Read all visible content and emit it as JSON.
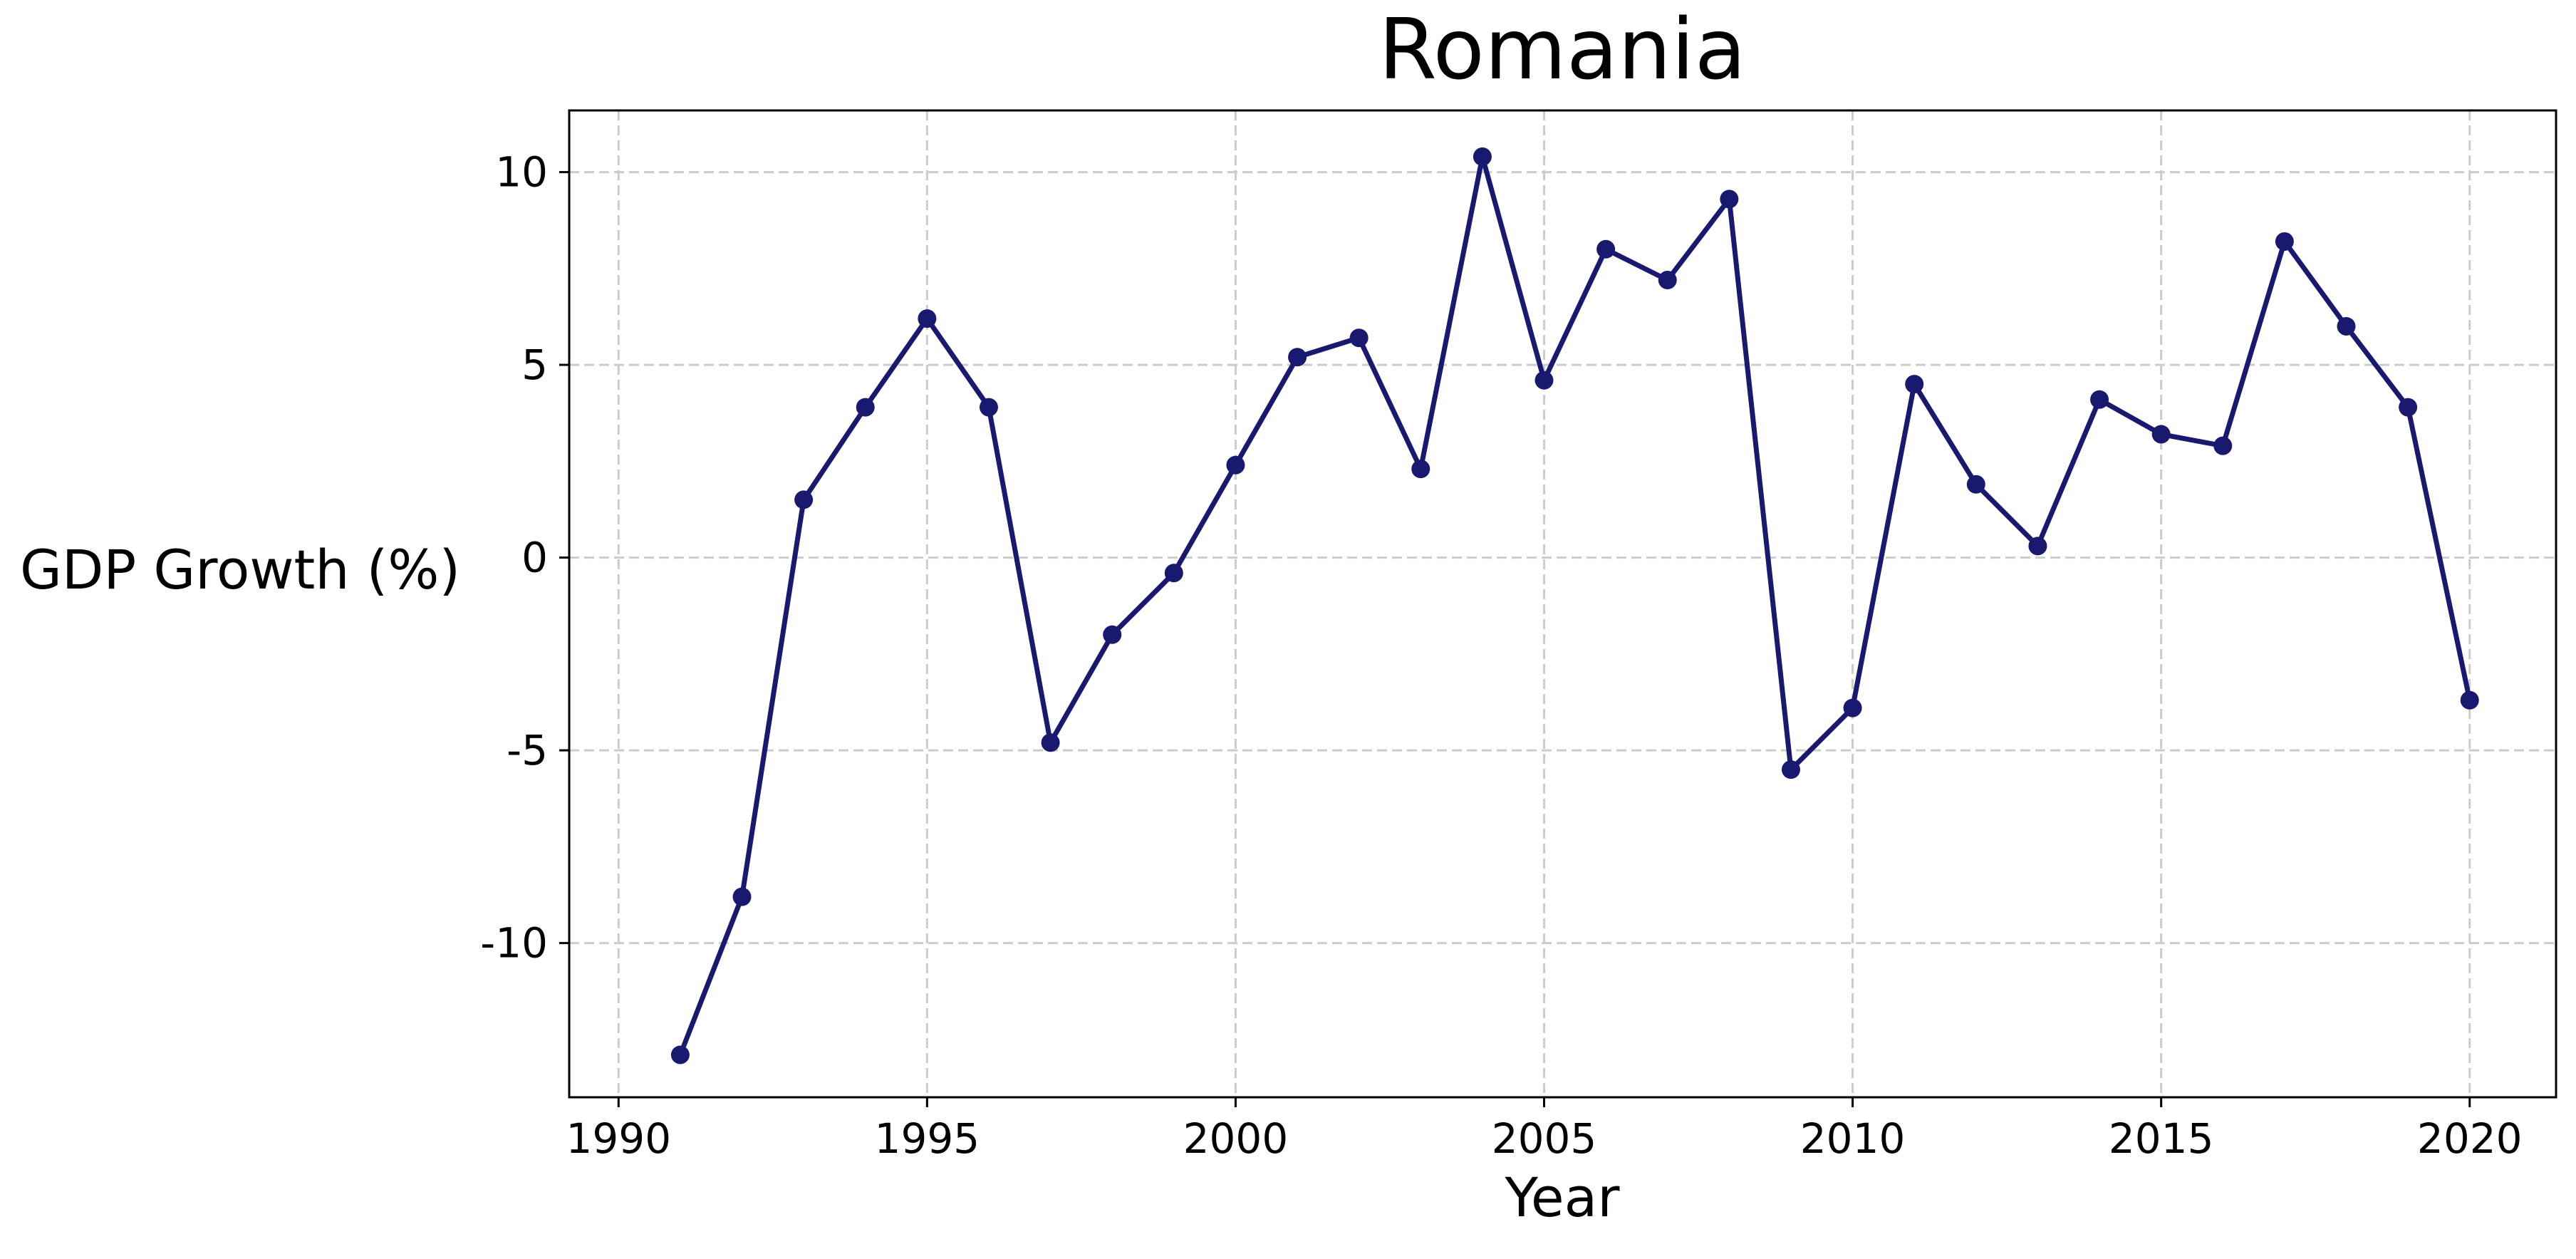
{
  "chart_data": {
    "type": "line",
    "title": "Romania",
    "xlabel": "Year",
    "ylabel": "GDP Growth (%)",
    "xlim": [
      1989.2,
      2021.4
    ],
    "ylim": [
      -14.0,
      11.6
    ],
    "xticks": [
      1990,
      1995,
      2000,
      2005,
      2010,
      2015,
      2020
    ],
    "yticks": [
      -10,
      -5,
      0,
      5,
      10
    ],
    "grid": true,
    "legend": "none",
    "colors": {
      "line": "#191970",
      "grid": "#cccccc",
      "axes": "#000000"
    },
    "series": [
      {
        "x": [
          1991,
          1992,
          1993,
          1994,
          1995,
          1996,
          1997,
          1998,
          1999,
          2000,
          2001,
          2002,
          2003,
          2004,
          2005,
          2006,
          2007,
          2008,
          2009,
          2010,
          2011,
          2012,
          2013,
          2014,
          2015,
          2016,
          2017,
          2018,
          2019,
          2020
        ],
        "values": [
          -12.9,
          -8.8,
          1.5,
          3.9,
          6.2,
          3.9,
          -4.8,
          -2.0,
          -0.4,
          2.4,
          5.2,
          5.7,
          2.3,
          10.4,
          4.6,
          8.0,
          7.2,
          9.3,
          -5.5,
          -3.9,
          4.5,
          1.9,
          0.3,
          4.1,
          3.2,
          2.9,
          8.2,
          6.0,
          3.9,
          -3.7
        ]
      }
    ]
  }
}
